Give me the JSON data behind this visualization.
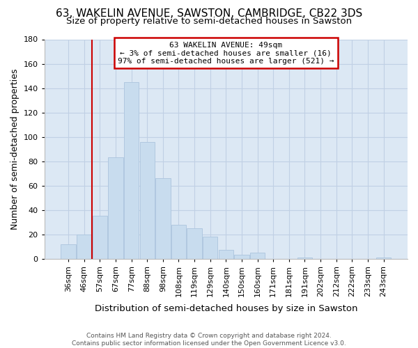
{
  "title": "63, WAKELIN AVENUE, SAWSTON, CAMBRIDGE, CB22 3DS",
  "subtitle": "Size of property relative to semi-detached houses in Sawston",
  "xlabel": "Distribution of semi-detached houses by size in Sawston",
  "ylabel": "Number of semi-detached properties",
  "footer_line1": "Contains HM Land Registry data © Crown copyright and database right 2024.",
  "footer_line2": "Contains public sector information licensed under the Open Government Licence v3.0.",
  "bar_labels": [
    "36sqm",
    "46sqm",
    "57sqm",
    "67sqm",
    "77sqm",
    "88sqm",
    "98sqm",
    "108sqm",
    "119sqm",
    "129sqm",
    "140sqm",
    "150sqm",
    "160sqm",
    "171sqm",
    "181sqm",
    "191sqm",
    "202sqm",
    "212sqm",
    "222sqm",
    "233sqm",
    "243sqm"
  ],
  "bar_values": [
    12,
    20,
    35,
    83,
    145,
    96,
    66,
    28,
    25,
    18,
    7,
    3,
    5,
    0,
    0,
    1,
    0,
    0,
    0,
    0,
    1
  ],
  "bar_color": "#c8dcee",
  "bar_edge_color": "#b0c8e0",
  "vline_index": 1.5,
  "annotation_title": "63 WAKELIN AVENUE: 49sqm",
  "annotation_line2": "← 3% of semi-detached houses are smaller (16)",
  "annotation_line3": "97% of semi-detached houses are larger (521) →",
  "annotation_box_color": "#ffffff",
  "annotation_box_edge": "#cc0000",
  "vline_color": "#cc0000",
  "ylim": [
    0,
    180
  ],
  "yticks": [
    0,
    20,
    40,
    60,
    80,
    100,
    120,
    140,
    160,
    180
  ],
  "plot_bg_color": "#dce8f4",
  "background_color": "#ffffff",
  "grid_color": "#c0d0e4",
  "title_fontsize": 11,
  "subtitle_fontsize": 9.5,
  "axis_label_fontsize": 9,
  "tick_fontsize": 8,
  "footer_fontsize": 6.5
}
